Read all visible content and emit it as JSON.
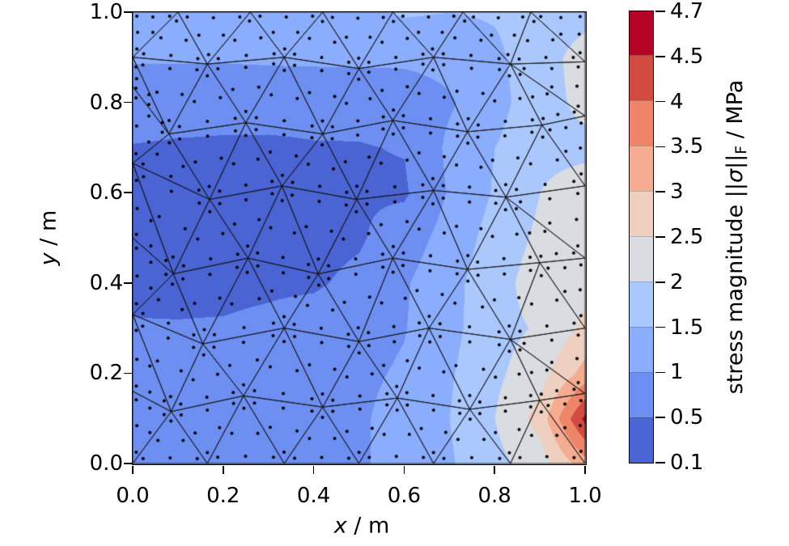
{
  "chart_data": {
    "type": "filled_contour_mesh",
    "xlabel": {
      "var": "x",
      "rest": " / m"
    },
    "ylabel": {
      "var": "y",
      "rest": " / m"
    },
    "xlim": [
      0.0,
      1.0
    ],
    "ylim": [
      0.0,
      1.0
    ],
    "x_ticks": [
      0.0,
      0.2,
      0.4,
      0.6,
      0.8,
      1.0
    ],
    "x_tick_labels": [
      "0.0",
      "0.2",
      "0.4",
      "0.6",
      "0.8",
      "1.0"
    ],
    "y_ticks": [
      0.0,
      0.2,
      0.4,
      0.6,
      0.8,
      1.0
    ],
    "y_tick_labels": [
      "0.0",
      "0.2",
      "0.4",
      "0.6",
      "0.8",
      "1.0"
    ],
    "colorbar": {
      "label_parts": {
        "prefix": "stress magnitude ||",
        "sigma": "σ",
        "bars": "||",
        "sub": "F",
        "suffix": " / MPa"
      },
      "units": "MPa",
      "levels": [
        0.1,
        0.5,
        1,
        1.5,
        2,
        2.5,
        3,
        3.5,
        4,
        4.5,
        4.7
      ],
      "tick_labels": [
        "0.1",
        "0.5",
        "1",
        "1.5",
        "2",
        "2.5",
        "3",
        "3.5",
        "4",
        "4.5",
        "4.7"
      ],
      "colors": [
        "#4a64d4",
        "#6d8ff1",
        "#8badfd",
        "#abc8fd",
        "#d9dce1",
        "#efd0c0",
        "#f5ac91",
        "#ee8468",
        "#d24b40",
        "#b40426"
      ],
      "orientation": "vertical",
      "spacing": "uniform"
    },
    "field": {
      "description": "stress magnitude sampled on regular grid, rows bottom (y=0) to top (y=1), columns x=0..1",
      "x": [
        0.0,
        0.1,
        0.2,
        0.3,
        0.4,
        0.5,
        0.6,
        0.7,
        0.8,
        0.9,
        1.0
      ],
      "y": [
        0.0,
        0.1,
        0.2,
        0.3,
        0.4,
        0.5,
        0.6,
        0.7,
        0.8,
        0.9,
        1.0
      ],
      "values": [
        [
          0.75,
          0.75,
          0.78,
          0.8,
          0.85,
          0.95,
          1.15,
          1.45,
          1.85,
          2.25,
          3.3
        ],
        [
          0.75,
          0.75,
          0.78,
          0.8,
          0.85,
          0.95,
          1.15,
          1.5,
          2.0,
          2.7,
          4.65
        ],
        [
          0.72,
          0.72,
          0.75,
          0.78,
          0.82,
          0.92,
          1.05,
          1.45,
          1.9,
          2.3,
          3.2
        ],
        [
          0.52,
          0.52,
          0.53,
          0.58,
          0.68,
          0.85,
          0.98,
          1.35,
          1.85,
          2.05,
          2.6
        ],
        [
          0.44,
          0.42,
          0.42,
          0.44,
          0.45,
          0.6,
          0.95,
          1.35,
          1.8,
          2.25,
          2.4
        ],
        [
          0.42,
          0.35,
          0.33,
          0.35,
          0.38,
          0.45,
          0.75,
          1.2,
          1.7,
          2.1,
          2.3
        ],
        [
          0.45,
          0.38,
          0.35,
          0.36,
          0.4,
          0.45,
          0.44,
          1.05,
          1.55,
          2.0,
          2.2
        ],
        [
          0.48,
          0.45,
          0.44,
          0.45,
          0.48,
          0.48,
          0.52,
          1.1,
          1.5,
          1.9,
          1.9
        ],
        [
          0.7,
          0.68,
          0.65,
          0.62,
          0.6,
          0.62,
          0.7,
          0.95,
          1.3,
          1.85,
          2.1
        ],
        [
          1.05,
          1.05,
          1.05,
          1.08,
          1.1,
          1.1,
          1.1,
          1.15,
          1.4,
          1.8,
          2.2
        ],
        [
          1.2,
          1.15,
          1.1,
          1.1,
          1.2,
          1.4,
          1.55,
          1.5,
          1.55,
          1.7,
          1.85
        ]
      ],
      "min_value": 0.1,
      "max_value": 4.7,
      "hotspot": {
        "x": 1.0,
        "y": 0.1,
        "value": 4.65
      },
      "low_region_center": {
        "x": 0.25,
        "y": 0.55,
        "value": 0.33
      }
    },
    "mesh": {
      "element_type": "triangle",
      "rows": [
        [
          [
            0,
            0
          ],
          [
            0.165,
            0
          ],
          [
            0.335,
            0
          ],
          [
            0.5,
            0
          ],
          [
            0.665,
            0
          ],
          [
            0.835,
            0
          ],
          [
            1,
            0
          ]
        ],
        [
          [
            0,
            0.16
          ],
          [
            0.085,
            0.115
          ],
          [
            0.245,
            0.15
          ],
          [
            0.42,
            0.125
          ],
          [
            0.585,
            0.145
          ],
          [
            0.745,
            0.12
          ],
          [
            0.9,
            0.14
          ],
          [
            1,
            0.155
          ]
        ],
        [
          [
            0,
            0.33
          ],
          [
            0.155,
            0.265
          ],
          [
            0.335,
            0.3
          ],
          [
            0.5,
            0.27
          ],
          [
            0.655,
            0.3
          ],
          [
            0.835,
            0.275
          ],
          [
            1,
            0.3
          ]
        ],
        [
          [
            0,
            0.5
          ],
          [
            0.09,
            0.42
          ],
          [
            0.255,
            0.455
          ],
          [
            0.41,
            0.42
          ],
          [
            0.575,
            0.455
          ],
          [
            0.74,
            0.43
          ],
          [
            0.9,
            0.445
          ],
          [
            1,
            0.455
          ]
        ],
        [
          [
            0,
            0.665
          ],
          [
            0.17,
            0.585
          ],
          [
            0.33,
            0.615
          ],
          [
            0.495,
            0.585
          ],
          [
            0.665,
            0.605
          ],
          [
            0.825,
            0.59
          ],
          [
            1,
            0.615
          ]
        ],
        [
          [
            0,
            0.835
          ],
          [
            0.08,
            0.73
          ],
          [
            0.25,
            0.755
          ],
          [
            0.42,
            0.73
          ],
          [
            0.575,
            0.76
          ],
          [
            0.74,
            0.735
          ],
          [
            0.905,
            0.75
          ],
          [
            1,
            0.77
          ]
        ],
        [
          [
            0,
            0.9
          ],
          [
            0.165,
            0.885
          ],
          [
            0.335,
            0.9
          ],
          [
            0.5,
            0.875
          ],
          [
            0.665,
            0.9
          ],
          [
            0.835,
            0.885
          ],
          [
            1,
            0.89
          ]
        ],
        [
          [
            0,
            1
          ],
          [
            0.1,
            1
          ],
          [
            0.26,
            1
          ],
          [
            0.42,
            1
          ],
          [
            0.575,
            1
          ],
          [
            0.73,
            1
          ],
          [
            0.88,
            1
          ],
          [
            1,
            1
          ]
        ]
      ],
      "line_color": "#141414"
    },
    "quadrature": {
      "points_per_triangle": 6,
      "dot_color": "#000000",
      "dot_radius_px": 2
    }
  }
}
